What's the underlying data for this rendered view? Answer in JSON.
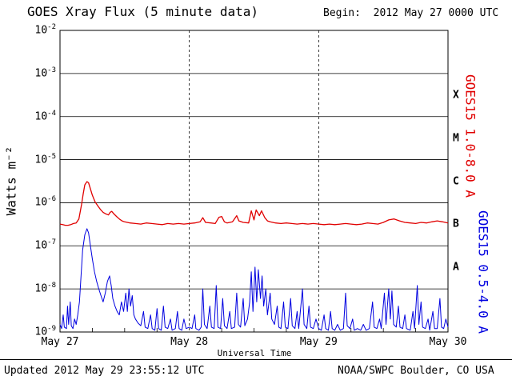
{
  "header": {
    "title": "GOES Xray Flux (5 minute data)",
    "begin_label": "Begin:  2012 May 27 0000 UTC"
  },
  "footer": {
    "updated_text": "Updated 2012 May 29 23:55:12 UTC",
    "source_text": "NOAA/SWPC Boulder, CO USA"
  },
  "colors": {
    "long_band_red": "#e00000",
    "short_band_blue": "#0000e0",
    "axis": "#000000",
    "background": "#ffffff"
  },
  "chart_data": {
    "type": "line",
    "title": "GOES Xray Flux (5 minute data)",
    "xlabel": "Universal Time",
    "ylabel": "Watts m⁻²",
    "x_axis": {
      "range_hours": [
        0,
        72
      ],
      "tick_hours": [
        0,
        24,
        48,
        72
      ],
      "tick_labels": [
        "May 27",
        "May 28",
        "May 29",
        "May 30"
      ],
      "minor_tick_step_hours": 6
    },
    "y_axis": {
      "scale": "log",
      "ylim": [
        1e-09,
        0.01
      ],
      "tick_exponents": [
        -2,
        -3,
        -4,
        -5,
        -6,
        -7,
        -8,
        -9
      ]
    },
    "grid": {
      "horizontal": "solid black at each decade",
      "vertical": "dashed black at day boundaries (May 28, May 29)"
    },
    "flare_classes": [
      {
        "label": "X",
        "center_exponent": -3.5
      },
      {
        "label": "M",
        "center_exponent": -4.5
      },
      {
        "label": "C",
        "center_exponent": -5.5
      },
      {
        "label": "B",
        "center_exponent": -6.5
      },
      {
        "label": "A",
        "center_exponent": -7.5
      }
    ],
    "series": [
      {
        "name": "GOES15 1.0-8.0 A",
        "color": "#e00000",
        "points": [
          [
            0,
            3.2e-07
          ],
          [
            0.5,
            3.1e-07
          ],
          [
            1,
            3e-07
          ],
          [
            1.5,
            3e-07
          ],
          [
            2,
            3.1e-07
          ],
          [
            2.5,
            3.3e-07
          ],
          [
            3,
            3.4e-07
          ],
          [
            3.5,
            4.2e-07
          ],
          [
            4,
            9e-07
          ],
          [
            4.3,
            1.6e-06
          ],
          [
            4.6,
            2.6e-06
          ],
          [
            5,
            3.1e-06
          ],
          [
            5.3,
            2.9e-06
          ],
          [
            5.6,
            2.2e-06
          ],
          [
            6,
            1.5e-06
          ],
          [
            6.5,
            1.05e-06
          ],
          [
            7,
            8.5e-07
          ],
          [
            7.5,
            7e-07
          ],
          [
            8,
            6e-07
          ],
          [
            8.5,
            5.5e-07
          ],
          [
            9,
            5.2e-07
          ],
          [
            9.3,
            6e-07
          ],
          [
            9.6,
            6.3e-07
          ],
          [
            10,
            5.5e-07
          ],
          [
            10.5,
            4.8e-07
          ],
          [
            11,
            4.2e-07
          ],
          [
            11.5,
            3.8e-07
          ],
          [
            12,
            3.6e-07
          ],
          [
            13,
            3.4e-07
          ],
          [
            14,
            3.3e-07
          ],
          [
            15,
            3.2e-07
          ],
          [
            16,
            3.4e-07
          ],
          [
            17,
            3.3e-07
          ],
          [
            18,
            3.2e-07
          ],
          [
            19,
            3.1e-07
          ],
          [
            20,
            3.3e-07
          ],
          [
            21,
            3.2e-07
          ],
          [
            22,
            3.3e-07
          ],
          [
            23,
            3.2e-07
          ],
          [
            24,
            3.3e-07
          ],
          [
            25,
            3.4e-07
          ],
          [
            26,
            3.6e-07
          ],
          [
            26.5,
            4.5e-07
          ],
          [
            27,
            3.5e-07
          ],
          [
            28,
            3.4e-07
          ],
          [
            28.8,
            3.3e-07
          ],
          [
            29.5,
            4.6e-07
          ],
          [
            30,
            4.8e-07
          ],
          [
            30.5,
            3.6e-07
          ],
          [
            31,
            3.4e-07
          ],
          [
            32,
            3.6e-07
          ],
          [
            32.8,
            5e-07
          ],
          [
            33.2,
            3.8e-07
          ],
          [
            34,
            3.5e-07
          ],
          [
            35,
            3.4e-07
          ],
          [
            35.5,
            6.5e-07
          ],
          [
            36,
            4e-07
          ],
          [
            36.4,
            6.8e-07
          ],
          [
            37,
            5e-07
          ],
          [
            37.4,
            6.5e-07
          ],
          [
            38,
            4.5e-07
          ],
          [
            38.5,
            3.8e-07
          ],
          [
            39,
            3.6e-07
          ],
          [
            40,
            3.4e-07
          ],
          [
            41,
            3.3e-07
          ],
          [
            42,
            3.4e-07
          ],
          [
            43,
            3.3e-07
          ],
          [
            44,
            3.2e-07
          ],
          [
            45,
            3.3e-07
          ],
          [
            46,
            3.2e-07
          ],
          [
            47,
            3.3e-07
          ],
          [
            48,
            3.2e-07
          ],
          [
            49,
            3.1e-07
          ],
          [
            50,
            3.2e-07
          ],
          [
            51,
            3.1e-07
          ],
          [
            52,
            3.2e-07
          ],
          [
            53,
            3.3e-07
          ],
          [
            54,
            3.2e-07
          ],
          [
            55,
            3.1e-07
          ],
          [
            56,
            3.2e-07
          ],
          [
            57,
            3.4e-07
          ],
          [
            58,
            3.3e-07
          ],
          [
            59,
            3.2e-07
          ],
          [
            60,
            3.5e-07
          ],
          [
            61,
            4e-07
          ],
          [
            62,
            4.2e-07
          ],
          [
            63,
            3.8e-07
          ],
          [
            64,
            3.5e-07
          ],
          [
            65,
            3.4e-07
          ],
          [
            66,
            3.3e-07
          ],
          [
            67,
            3.5e-07
          ],
          [
            68,
            3.4e-07
          ],
          [
            69,
            3.6e-07
          ],
          [
            70,
            3.8e-07
          ],
          [
            71,
            3.6e-07
          ],
          [
            72,
            3.4e-07
          ]
        ]
      },
      {
        "name": "GOES15 0.5-4.0 A",
        "color": "#0000e0",
        "points": [
          [
            0,
            1.5e-09
          ],
          [
            0.3,
            1.2e-09
          ],
          [
            0.6,
            2.5e-09
          ],
          [
            0.8,
            1.3e-09
          ],
          [
            1.2,
            1.2e-09
          ],
          [
            1.4,
            4e-09
          ],
          [
            1.6,
            1.5e-09
          ],
          [
            1.9,
            5e-09
          ],
          [
            2.1,
            1.4e-09
          ],
          [
            2.4,
            1.2e-09
          ],
          [
            2.7,
            2e-09
          ],
          [
            3,
            1.5e-09
          ],
          [
            3.3,
            2.5e-09
          ],
          [
            3.6,
            5e-09
          ],
          [
            3.9,
            2e-08
          ],
          [
            4.2,
            8e-08
          ],
          [
            4.6,
            1.8e-07
          ],
          [
            5,
            2.5e-07
          ],
          [
            5.3,
            2e-07
          ],
          [
            5.6,
            1.1e-07
          ],
          [
            6,
            5e-08
          ],
          [
            6.4,
            2.5e-08
          ],
          [
            6.8,
            1.5e-08
          ],
          [
            7.2,
            1e-08
          ],
          [
            7.6,
            7e-09
          ],
          [
            8,
            5e-09
          ],
          [
            8.4,
            8e-09
          ],
          [
            8.8,
            1.5e-08
          ],
          [
            9.2,
            2e-08
          ],
          [
            9.5,
            1.2e-08
          ],
          [
            9.8,
            6e-09
          ],
          [
            10.2,
            4e-09
          ],
          [
            10.6,
            3e-09
          ],
          [
            11,
            2.5e-09
          ],
          [
            11.4,
            5e-09
          ],
          [
            11.8,
            3e-09
          ],
          [
            12.2,
            8e-09
          ],
          [
            12.5,
            3e-09
          ],
          [
            12.8,
            1e-08
          ],
          [
            13.1,
            4e-09
          ],
          [
            13.4,
            7e-09
          ],
          [
            13.7,
            2.5e-09
          ],
          [
            14,
            2e-09
          ],
          [
            14.5,
            1.6e-09
          ],
          [
            15,
            1.4e-09
          ],
          [
            15.5,
            3e-09
          ],
          [
            15.8,
            1.3e-09
          ],
          [
            16.3,
            1.2e-09
          ],
          [
            16.8,
            2.5e-09
          ],
          [
            17.1,
            1.2e-09
          ],
          [
            17.6,
            1.1e-09
          ],
          [
            18,
            3.5e-09
          ],
          [
            18.3,
            1.2e-09
          ],
          [
            18.8,
            1.1e-09
          ],
          [
            19.2,
            4e-09
          ],
          [
            19.5,
            1.3e-09
          ],
          [
            20,
            1.2e-09
          ],
          [
            20.5,
            2e-09
          ],
          [
            20.8,
            1.1e-09
          ],
          [
            21.4,
            1.2e-09
          ],
          [
            21.8,
            3e-09
          ],
          [
            22.1,
            1.2e-09
          ],
          [
            22.6,
            1.1e-09
          ],
          [
            23,
            2e-09
          ],
          [
            23.4,
            1.2e-09
          ],
          [
            24,
            1.3e-09
          ],
          [
            24.5,
            1.2e-09
          ],
          [
            25,
            2.5e-09
          ],
          [
            25.2,
            1.2e-09
          ],
          [
            25.8,
            1.1e-09
          ],
          [
            26.2,
            1.3e-09
          ],
          [
            26.5,
            1e-08
          ],
          [
            26.8,
            1.5e-09
          ],
          [
            27.3,
            1.2e-09
          ],
          [
            27.8,
            4e-09
          ],
          [
            28.1,
            1.3e-09
          ],
          [
            28.6,
            1.2e-09
          ],
          [
            29,
            1.2e-08
          ],
          [
            29.3,
            1.3e-09
          ],
          [
            29.8,
            1.2e-09
          ],
          [
            30.2,
            6e-09
          ],
          [
            30.5,
            1.4e-09
          ],
          [
            31,
            1.2e-09
          ],
          [
            31.5,
            3e-09
          ],
          [
            31.8,
            1.2e-09
          ],
          [
            32.4,
            1.3e-09
          ],
          [
            32.8,
            8e-09
          ],
          [
            33.1,
            1.5e-09
          ],
          [
            33.5,
            1.3e-09
          ],
          [
            34,
            6e-09
          ],
          [
            34.3,
            1.4e-09
          ],
          [
            34.8,
            2e-09
          ],
          [
            35.2,
            5e-09
          ],
          [
            35.5,
            2.5e-08
          ],
          [
            35.8,
            3e-09
          ],
          [
            36.2,
            3.2e-08
          ],
          [
            36.5,
            5e-09
          ],
          [
            36.8,
            2.8e-08
          ],
          [
            37.2,
            6e-09
          ],
          [
            37.5,
            2e-08
          ],
          [
            37.8,
            4e-09
          ],
          [
            38.2,
            1e-08
          ],
          [
            38.5,
            2.5e-09
          ],
          [
            39,
            8e-09
          ],
          [
            39.3,
            2e-09
          ],
          [
            39.8,
            1.5e-09
          ],
          [
            40.3,
            4e-09
          ],
          [
            40.6,
            1.3e-09
          ],
          [
            41,
            1.2e-09
          ],
          [
            41.5,
            5e-09
          ],
          [
            41.8,
            1.3e-09
          ],
          [
            42.3,
            1.2e-09
          ],
          [
            42.8,
            6e-09
          ],
          [
            43.1,
            1.4e-09
          ],
          [
            43.6,
            1.2e-09
          ],
          [
            44,
            3e-09
          ],
          [
            44.3,
            1.2e-09
          ],
          [
            45,
            1e-08
          ],
          [
            45.3,
            1.5e-09
          ],
          [
            45.8,
            1.2e-09
          ],
          [
            46.2,
            4e-09
          ],
          [
            46.5,
            1.3e-09
          ],
          [
            47,
            1.2e-09
          ],
          [
            47.5,
            2e-09
          ],
          [
            48,
            1.2e-09
          ],
          [
            48.5,
            1.1e-09
          ],
          [
            49,
            2.5e-09
          ],
          [
            49.3,
            1.2e-09
          ],
          [
            49.8,
            1.1e-09
          ],
          [
            50.2,
            3e-09
          ],
          [
            50.5,
            1.2e-09
          ],
          [
            51,
            1.1e-09
          ],
          [
            51.5,
            1.5e-09
          ],
          [
            52,
            1.1e-09
          ],
          [
            52.6,
            1.2e-09
          ],
          [
            53,
            8e-09
          ],
          [
            53.3,
            1.4e-09
          ],
          [
            53.8,
            1.2e-09
          ],
          [
            54.3,
            2e-09
          ],
          [
            54.6,
            1.1e-09
          ],
          [
            55.2,
            1.2e-09
          ],
          [
            55.8,
            1.1e-09
          ],
          [
            56.3,
            1.5e-09
          ],
          [
            56.8,
            1.1e-09
          ],
          [
            57.4,
            1.2e-09
          ],
          [
            58,
            5e-09
          ],
          [
            58.3,
            1.3e-09
          ],
          [
            58.8,
            1.2e-09
          ],
          [
            59.3,
            2e-09
          ],
          [
            59.6,
            1.2e-09
          ],
          [
            60.2,
            8e-09
          ],
          [
            60.5,
            1.5e-09
          ],
          [
            61,
            1e-08
          ],
          [
            61.3,
            2e-09
          ],
          [
            61.6,
            9e-09
          ],
          [
            61.9,
            1.5e-09
          ],
          [
            62.4,
            1.3e-09
          ],
          [
            62.8,
            4e-09
          ],
          [
            63.1,
            1.3e-09
          ],
          [
            63.6,
            1.2e-09
          ],
          [
            64,
            2.5e-09
          ],
          [
            64.3,
            1.2e-09
          ],
          [
            65,
            1.1e-09
          ],
          [
            65.5,
            3e-09
          ],
          [
            65.8,
            1.2e-09
          ],
          [
            66.3,
            1.2e-08
          ],
          [
            66.6,
            1.5e-09
          ],
          [
            67,
            5e-09
          ],
          [
            67.3,
            1.3e-09
          ],
          [
            67.8,
            1.2e-09
          ],
          [
            68.3,
            2e-09
          ],
          [
            68.6,
            1.1e-09
          ],
          [
            69.2,
            3e-09
          ],
          [
            69.5,
            1.2e-09
          ],
          [
            70,
            1.2e-09
          ],
          [
            70.5,
            6e-09
          ],
          [
            70.8,
            1.3e-09
          ],
          [
            71.2,
            1.2e-09
          ],
          [
            71.6,
            2e-09
          ],
          [
            72,
            1.3e-09
          ]
        ]
      }
    ]
  }
}
